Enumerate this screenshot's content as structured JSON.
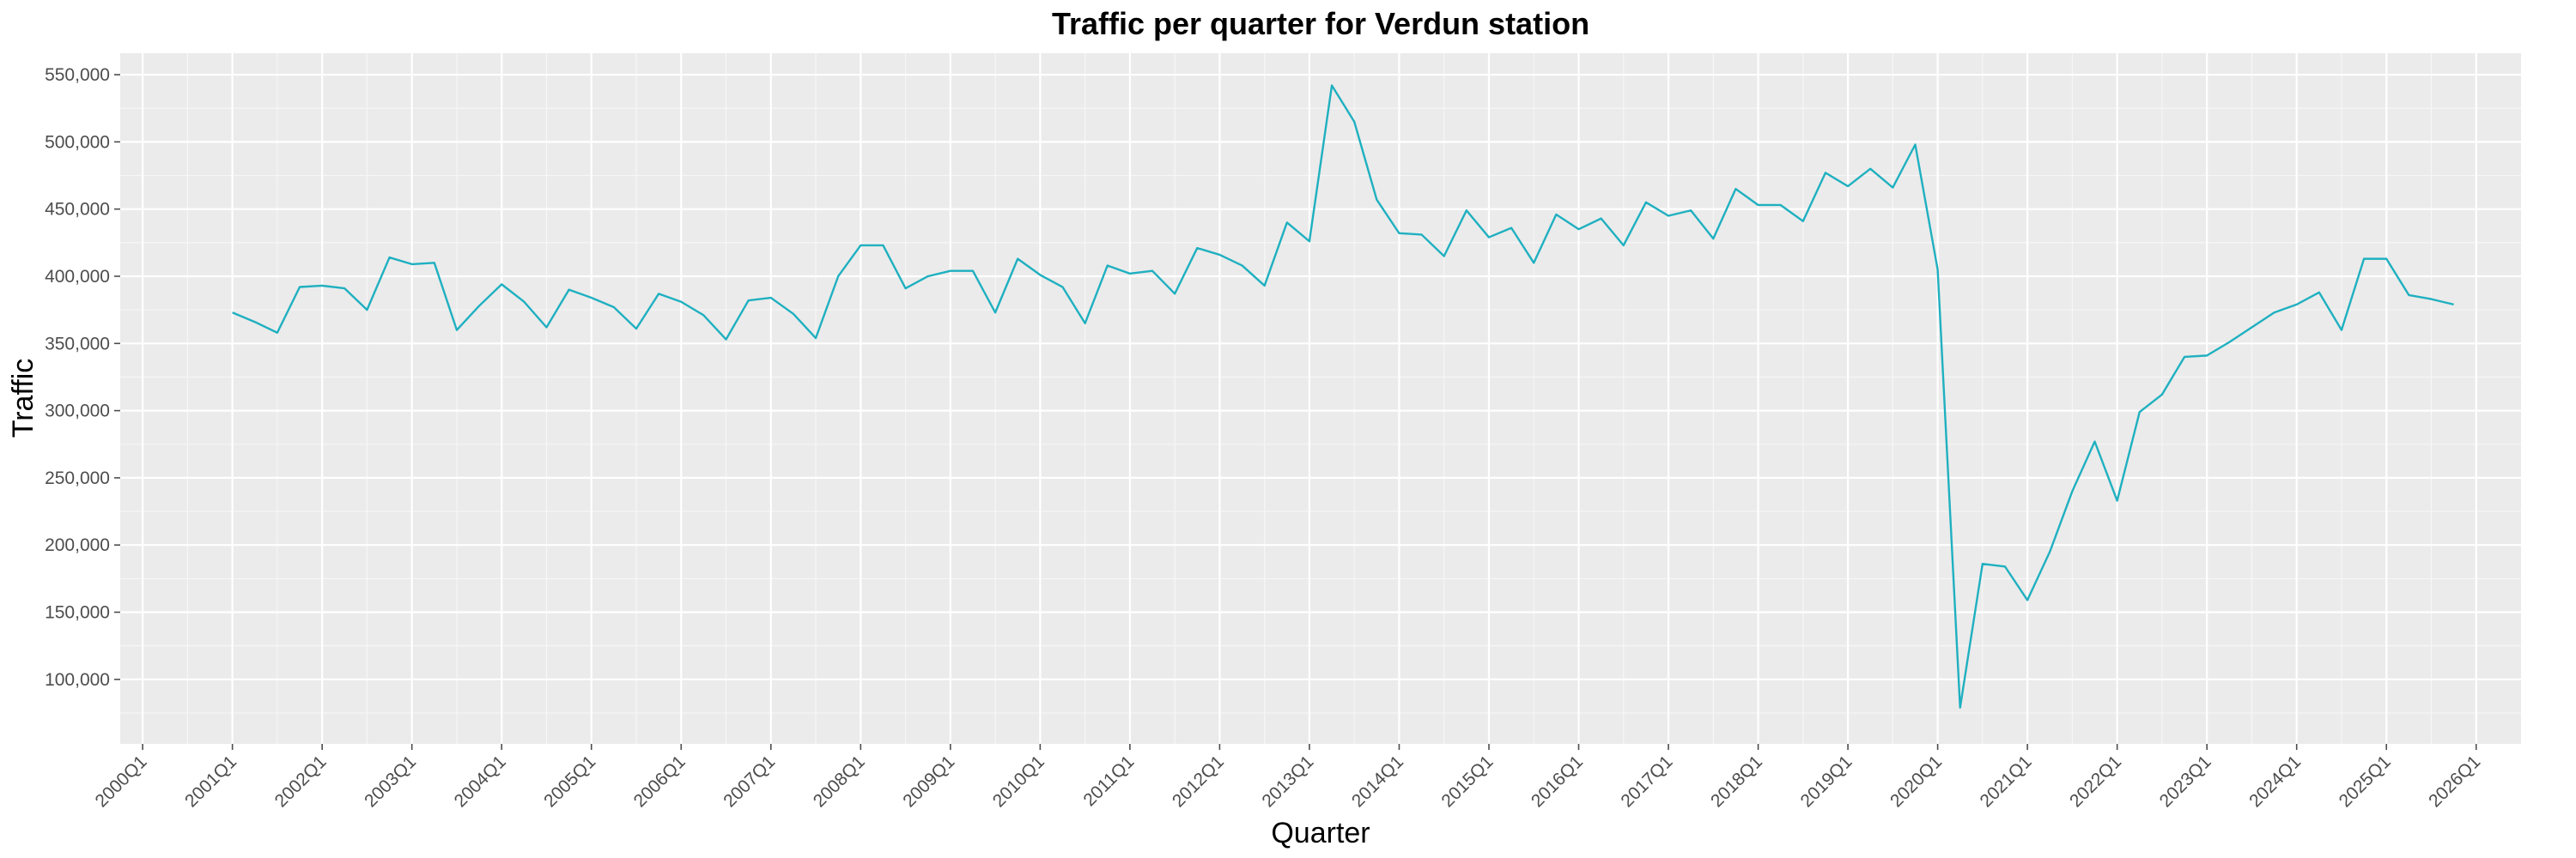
{
  "chart_data": {
    "type": "line",
    "title": "Traffic per quarter for Verdun station",
    "xlabel": "Quarter",
    "ylabel": "Traffic",
    "x_start": "2001Q1",
    "x_ticks": [
      "2000Q1",
      "2001Q1",
      "2002Q1",
      "2003Q1",
      "2004Q1",
      "2005Q1",
      "2006Q1",
      "2007Q1",
      "2008Q1",
      "2009Q1",
      "2010Q1",
      "2011Q1",
      "2012Q1",
      "2013Q1",
      "2014Q1",
      "2015Q1",
      "2016Q1",
      "2017Q1",
      "2018Q1",
      "2019Q1",
      "2020Q1",
      "2021Q1",
      "2022Q1",
      "2023Q1",
      "2024Q1",
      "2025Q1",
      "2026Q1"
    ],
    "y_ticks": [
      100000,
      150000,
      200000,
      250000,
      300000,
      350000,
      400000,
      450000,
      500000,
      550000
    ],
    "y_tick_labels": [
      "100,000",
      "150,000",
      "200,000",
      "250,000",
      "300,000",
      "350,000",
      "400,000",
      "450,000",
      "500,000",
      "550,000"
    ],
    "ylim": [
      52000,
      566000
    ],
    "xlim": [
      "1999Q4",
      "2026Q3"
    ],
    "grid": true,
    "line_color": "#1fb0c0",
    "series": [
      {
        "values": [
          373000,
          366000,
          358000,
          392000,
          393000,
          391000,
          375000,
          414000,
          409000,
          410000,
          360000,
          378000,
          394000,
          381000,
          362000,
          390000,
          384000,
          377000,
          361000,
          387000,
          381000,
          371000,
          353000,
          382000,
          384000,
          372000,
          354000,
          400000,
          423000,
          423000,
          391000,
          400000,
          404000,
          404000,
          373000,
          413000,
          401000,
          392000,
          365000,
          408000,
          402000,
          404000,
          387000,
          421000,
          416000,
          408000,
          393000,
          440000,
          426000,
          542000,
          515000,
          457000,
          432000,
          431000,
          415000,
          449000,
          429000,
          436000,
          410000,
          446000,
          435000,
          443000,
          423000,
          455000,
          445000,
          449000,
          428000,
          465000,
          453000,
          453000,
          441000,
          477000,
          467000,
          480000,
          466000,
          498000,
          405000,
          79000,
          186000,
          184000,
          159000,
          195000,
          240000,
          277000,
          233000,
          299000,
          312000,
          340000,
          341000,
          351000,
          362000,
          373000,
          379000,
          388000,
          360000,
          413000,
          413000,
          386000,
          383000,
          379000
        ]
      }
    ]
  }
}
